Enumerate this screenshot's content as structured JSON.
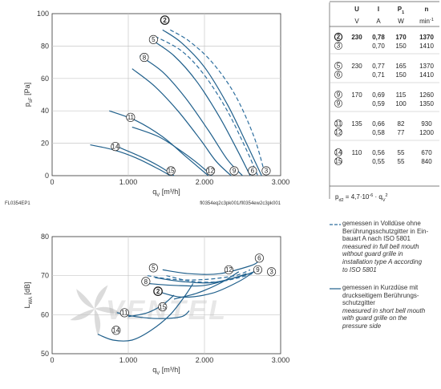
{
  "colors": {
    "solid": "#1f5f8b",
    "dashed": "#2d6e9e",
    "grid": "#c7c7c7",
    "axis": "#333333",
    "watermark": "#d4d4d4"
  },
  "top_chart_ids": {
    "left": "FL0354EP1",
    "right": "fl0354eq2c3pk001/fl0354ew2c3pk001"
  },
  "top_y_label": "p",
  "top_y_label_sub": "sF",
  "top_y_label_unit": "[Pa]",
  "top_x_label": "q",
  "top_x_label_sub": "V",
  "top_x_label_unit": "[m³/h]",
  "bottom_y_label": "L",
  "bottom_y_label_sub": "WA",
  "bottom_y_label_unit": "[dB]",
  "bottom_x_label": "q",
  "bottom_x_label_sub": "V",
  "bottom_x_label_unit": "[m³/h]",
  "watermark": "VENTEL",
  "table": {
    "headers": [
      "U",
      "I",
      "P",
      "n"
    ],
    "header_sub": "1",
    "units": [
      "V",
      "A",
      "W",
      "min"
    ],
    "units_sup": "-1",
    "rows": [
      {
        "mark": "2",
        "U": "230",
        "I": "0,78",
        "P": "170",
        "n": "1370",
        "bold": true
      },
      {
        "mark": "3",
        "U": "",
        "I": "0,70",
        "P": "150",
        "n": "1410",
        "bold": false
      },
      {
        "mark": "5",
        "U": "230",
        "I": "0,77",
        "P": "165",
        "n": "1370",
        "bold": false
      },
      {
        "mark": "6",
        "U": "",
        "I": "0,71",
        "P": "150",
        "n": "1410",
        "bold": false
      },
      {
        "mark": "9",
        "U": "170",
        "I": "0,69",
        "P": "115",
        "n": "1260",
        "bold": false
      },
      {
        "mark": "9",
        "U": "",
        "I": "0,59",
        "P": "100",
        "n": "1350",
        "bold": false
      },
      {
        "mark": "11",
        "U": "135",
        "I": "0,66",
        "P": "82",
        "n": "930",
        "bold": false
      },
      {
        "mark": "12",
        "U": "",
        "I": "0,58",
        "P": "77",
        "n": "1200",
        "bold": false
      },
      {
        "mark": "14",
        "U": "110",
        "I": "0,56",
        "P": "55",
        "n": "670",
        "bold": false
      },
      {
        "mark": "15",
        "U": "",
        "I": "0,55",
        "P": "55",
        "n": "840",
        "bold": false
      }
    ],
    "formula": "p",
    "formula_sub": "d2",
    "formula_rest": " = 4,7·10",
    "formula_exp": "-6",
    "formula_end": " · q",
    "formula_sub2": "V",
    "formula_exp2": "2"
  },
  "legend": {
    "dashed": {
      "de": [
        "gemessen in Volldüse ohne",
        "Berührungsschutzgitter in Ein-",
        "bauart A nach ISO 5801"
      ],
      "en": [
        "measured in full bell mouth",
        "without guard grille in",
        "installation type A according",
        "to ISO 5801"
      ]
    },
    "solid": {
      "de": [
        "gemessen in Kurzdüse mit",
        "druckseitigem Berührungs-",
        "schutzgitter"
      ],
      "en": [
        "measured in short bell mouth",
        "with guard grille on the",
        "pressure side"
      ]
    }
  },
  "chart_data": [
    {
      "type": "line",
      "title": "",
      "xlabel": "qV [m³/h]",
      "ylabel": "psF [Pa]",
      "xlim": [
        0,
        3000
      ],
      "ylim": [
        0,
        100
      ],
      "x_ticks": [
        "0",
        "1.000",
        "2.000",
        "3.000"
      ],
      "y_ticks": [
        "0",
        "20",
        "40",
        "60",
        "80",
        "100"
      ],
      "grid": true,
      "series": [
        {
          "name": "2",
          "style": "solid",
          "x": [
            1450,
            1700,
            2000,
            2300,
            2550,
            2750
          ],
          "y": [
            90,
            82,
            67,
            44,
            20,
            0
          ]
        },
        {
          "name": "3",
          "style": "dashed",
          "x": [
            1550,
            1800,
            2100,
            2400,
            2650,
            2800
          ],
          "y": [
            90,
            83,
            70,
            50,
            24,
            0
          ]
        },
        {
          "name": "5",
          "style": "solid",
          "x": [
            1300,
            1600,
            1900,
            2200,
            2450,
            2600
          ],
          "y": [
            84,
            74,
            58,
            36,
            14,
            0
          ]
        },
        {
          "name": "6",
          "style": "dashed",
          "x": [
            1350,
            1700,
            2000,
            2300,
            2550,
            2700
          ],
          "y": [
            86,
            77,
            62,
            40,
            16,
            0
          ]
        },
        {
          "name": "8",
          "style": "solid",
          "x": [
            1150,
            1450,
            1750,
            2050,
            2300,
            2500
          ],
          "y": [
            74,
            64,
            48,
            28,
            10,
            0
          ]
        },
        {
          "name": "9",
          "style": "solid",
          "x": [
            1050,
            1350,
            1650,
            1950,
            2150,
            2350
          ],
          "y": [
            66,
            55,
            40,
            22,
            9,
            0
          ]
        },
        {
          "name": "11",
          "style": "solid",
          "x": [
            750,
            1100,
            1450,
            1750,
            2050
          ],
          "y": [
            40,
            34,
            24,
            12,
            0
          ]
        },
        {
          "name": "12",
          "style": "solid",
          "x": [
            1050,
            1400,
            1700,
            1900,
            2100
          ],
          "y": [
            30,
            24,
            15,
            8,
            0
          ]
        },
        {
          "name": "14",
          "style": "solid",
          "x": [
            500,
            800,
            1100,
            1400,
            1550
          ],
          "y": [
            19,
            16,
            11,
            4,
            0
          ]
        },
        {
          "name": "15",
          "style": "solid",
          "x": [
            850,
            1150,
            1400,
            1600
          ],
          "y": [
            18,
            12,
            6,
            0
          ]
        }
      ],
      "marker_labels": [
        {
          "label": "2",
          "x": 1480,
          "y": 96
        },
        {
          "label": "5",
          "x": 1330,
          "y": 84
        },
        {
          "label": "8",
          "x": 1210,
          "y": 73
        },
        {
          "label": "11",
          "x": 1030,
          "y": 36
        },
        {
          "label": "14",
          "x": 830,
          "y": 18
        },
        {
          "label": "15",
          "x": 1560,
          "y": 3
        },
        {
          "label": "12",
          "x": 2080,
          "y": 3
        },
        {
          "label": "9",
          "x": 2390,
          "y": 3
        },
        {
          "label": "6",
          "x": 2630,
          "y": 3
        },
        {
          "label": "3",
          "x": 2810,
          "y": 3
        }
      ]
    },
    {
      "type": "line",
      "title": "",
      "xlabel": "qV [m³/h]",
      "ylabel": "LWA [dB]",
      "xlim": [
        0,
        3000
      ],
      "ylim": [
        50,
        80
      ],
      "x_ticks": [
        "0",
        "1.000",
        "2.000",
        "3.000"
      ],
      "y_ticks": [
        "50",
        "60",
        "70",
        "80"
      ],
      "grid": true,
      "series": [
        {
          "name": "6",
          "style": "solid",
          "x": [
            1450,
            1800,
            2200,
            2600,
            2700
          ],
          "y": [
            71.5,
            70.5,
            70.5,
            72.5,
            73.5
          ]
        },
        {
          "name": "9",
          "style": "solid",
          "x": [
            1350,
            1700,
            2100,
            2500,
            2650
          ],
          "y": [
            69.5,
            68.5,
            68.2,
            70,
            71
          ]
        },
        {
          "name": "8",
          "style": "solid",
          "x": [
            1250,
            1600,
            2000,
            2400,
            2550
          ],
          "y": [
            68,
            67.5,
            67.5,
            69.5,
            70.5
          ]
        },
        {
          "name": "12",
          "style": "solid",
          "x": [
            1600,
            1900,
            2200,
            2450
          ],
          "y": [
            64,
            65.5,
            68,
            71
          ]
        },
        {
          "name": "2",
          "style": "solid",
          "x": [
            1380,
            1700,
            2100,
            2450,
            2650
          ],
          "y": [
            66,
            64.5,
            65.5,
            68.5,
            71
          ]
        },
        {
          "name": "3",
          "style": "dashed",
          "x": [
            1500,
            1850,
            2200,
            2550,
            2750
          ],
          "y": [
            70,
            68.5,
            68.5,
            70,
            71.5
          ]
        },
        {
          "name": "5",
          "style": "dashed",
          "x": [
            1250,
            1600,
            2000,
            2400,
            2600
          ],
          "y": [
            70,
            69,
            69,
            70,
            71.5
          ]
        },
        {
          "name": "11",
          "style": "solid",
          "x": [
            850,
            1100,
            1400,
            1700,
            1800
          ],
          "y": [
            60.5,
            59.5,
            59,
            59.5,
            61
          ]
        },
        {
          "name": "14",
          "style": "solid",
          "x": [
            600,
            800,
            1050,
            1300,
            1550,
            1750,
            1850
          ],
          "y": [
            55,
            53.5,
            53.5,
            56,
            60,
            65,
            68
          ]
        },
        {
          "name": "15",
          "style": "solid",
          "x": [
            1000,
            1250,
            1450,
            1600
          ],
          "y": [
            59.5,
            60.5,
            62.5,
            65
          ]
        }
      ],
      "marker_labels": [
        {
          "label": "5",
          "x": 1330,
          "y": 72
        },
        {
          "label": "8",
          "x": 1230,
          "y": 68.5
        },
        {
          "label": "2",
          "x": 1390,
          "y": 66
        },
        {
          "label": "15",
          "x": 1450,
          "y": 62
        },
        {
          "label": "11",
          "x": 950,
          "y": 60.5
        },
        {
          "label": "14",
          "x": 840,
          "y": 56
        },
        {
          "label": "12",
          "x": 2320,
          "y": 71.5
        },
        {
          "label": "6",
          "x": 2720,
          "y": 74.5
        },
        {
          "label": "9",
          "x": 2700,
          "y": 71.5
        },
        {
          "label": "3",
          "x": 2880,
          "y": 71
        }
      ]
    }
  ]
}
